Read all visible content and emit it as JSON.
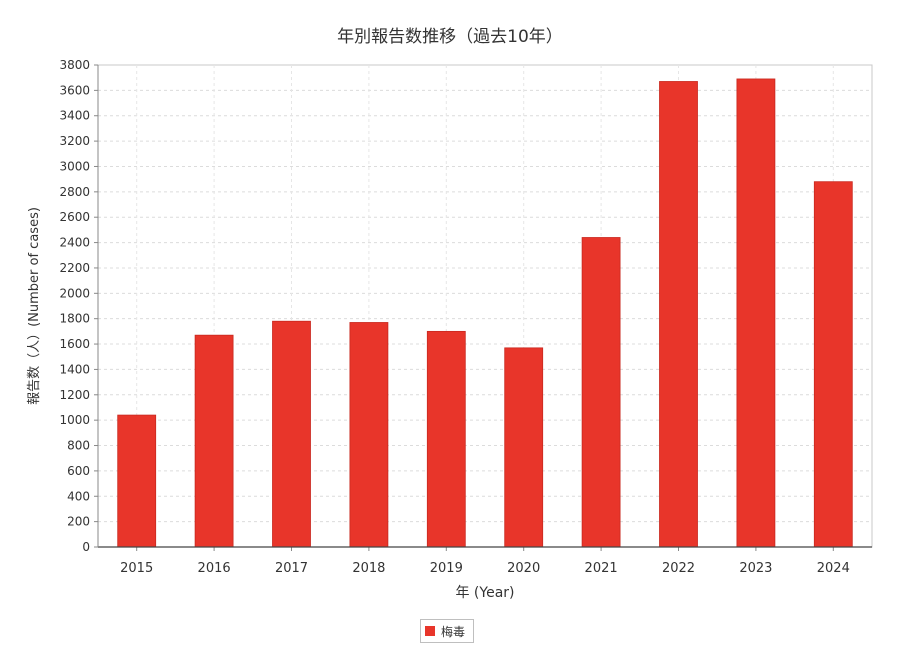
{
  "chart_data": {
    "type": "bar",
    "title": "年別報告数推移（過去10年）",
    "xlabel": "年 (Year)",
    "ylabel": "報告数（人）(Number of cases)",
    "categories": [
      "2015",
      "2016",
      "2017",
      "2018",
      "2019",
      "2020",
      "2021",
      "2022",
      "2023",
      "2024"
    ],
    "series": [
      {
        "name": "梅毒",
        "color": "#e8352a",
        "values": [
          1040,
          1670,
          1780,
          1770,
          1700,
          1570,
          2440,
          3670,
          3690,
          2880
        ]
      }
    ],
    "ylim": [
      0,
      3800
    ],
    "ytick_step": 200,
    "grid": true,
    "legend_position": "bottom-center"
  }
}
